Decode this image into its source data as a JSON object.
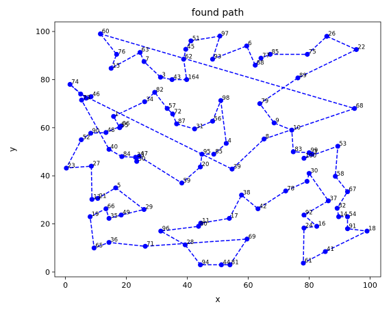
{
  "chart_data": {
    "type": "line",
    "title": "found path",
    "xlabel": "x",
    "ylabel": "y",
    "xlim": [
      -3.5,
      103.5
    ],
    "ylim": [
      -2,
      104
    ],
    "xticks": [
      0,
      20,
      40,
      60,
      80,
      100
    ],
    "yticks": [
      0,
      20,
      40,
      60,
      80,
      100
    ],
    "grid": false,
    "series": [
      {
        "color": "#0000ff",
        "line_style": "dashed",
        "marker": "circle",
        "points": [
          {
            "id": "60",
            "x": 11.5,
            "y": 99
          },
          {
            "id": "76",
            "x": 16.8,
            "y": 90.5
          },
          {
            "id": "15",
            "x": 15.0,
            "y": 84.7
          },
          {
            "id": "63",
            "x": 24.5,
            "y": 91.3
          },
          {
            "id": "7",
            "x": 25.8,
            "y": 87.5
          },
          {
            "id": "3",
            "x": 31.2,
            "y": 81.0
          },
          {
            "id": "43",
            "x": 35.0,
            "y": 80.0
          },
          {
            "id": "164",
            "x": 39.8,
            "y": 80.0
          },
          {
            "id": "62",
            "x": 38.8,
            "y": 88.5
          },
          {
            "id": "45",
            "x": 39.5,
            "y": 92.6
          },
          {
            "id": "51",
            "x": 41.2,
            "y": 96.1
          },
          {
            "id": "97",
            "x": 50.7,
            "y": 98.1
          },
          {
            "id": "93",
            "x": 48.3,
            "y": 88.5
          },
          {
            "id": "6",
            "x": 59.5,
            "y": 94.0
          },
          {
            "id": "88",
            "x": 62.3,
            "y": 86.0
          },
          {
            "id": "77",
            "x": 64.2,
            "y": 88.9
          },
          {
            "id": "85",
            "x": 67.2,
            "y": 90.5
          },
          {
            "id": "75",
            "x": 79.4,
            "y": 90.5
          },
          {
            "id": "26",
            "x": 85.8,
            "y": 98.0
          },
          {
            "id": "22",
            "x": 95.5,
            "y": 92.5
          },
          {
            "id": "89",
            "x": 76.3,
            "y": 80.7
          },
          {
            "id": "79",
            "x": 63.8,
            "y": 70.0
          },
          {
            "id": "9",
            "x": 68.5,
            "y": 62.0
          },
          {
            "id": "10",
            "x": 74.3,
            "y": 59.0
          },
          {
            "id": "83",
            "x": 74.8,
            "y": 50.0
          },
          {
            "id": "99",
            "x": 80.0,
            "y": 49.6
          },
          {
            "id": "3",
            "x": 81.0,
            "y": 49.0
          },
          {
            "id": "100",
            "x": 78.3,
            "y": 47.3
          },
          {
            "id": "53",
            "x": 89.4,
            "y": 52.3
          },
          {
            "id": "58",
            "x": 88.6,
            "y": 39.8
          },
          {
            "id": "67",
            "x": 92.6,
            "y": 33.4
          },
          {
            "id": "32",
            "x": 89.2,
            "y": 26.5
          },
          {
            "id": "14",
            "x": 89.7,
            "y": 23.0
          },
          {
            "id": "54",
            "x": 92.6,
            "y": 23.0
          },
          {
            "id": "91",
            "x": 92.6,
            "y": 18.0
          },
          {
            "id": "18",
            "x": 99.0,
            "y": 17.0
          },
          {
            "id": "41",
            "x": 85.3,
            "y": 8.5
          },
          {
            "id": "61",
            "x": 78.1,
            "y": 3.7
          },
          {
            "id": "24",
            "x": 78.3,
            "y": 18.3
          },
          {
            "id": "16",
            "x": 82.5,
            "y": 19.0
          },
          {
            "id": "92",
            "x": 78.3,
            "y": 23.7
          },
          {
            "id": "37",
            "x": 86.3,
            "y": 29.6
          },
          {
            "id": "30",
            "x": 80.0,
            "y": 41.0
          },
          {
            "id": "30b",
            "x": 79.3,
            "y": 37.7
          },
          {
            "id": "78",
            "x": 72.3,
            "y": 33.7
          },
          {
            "id": "42",
            "x": 63.2,
            "y": 26.3
          },
          {
            "id": "38",
            "x": 57.8,
            "y": 32.0
          },
          {
            "id": "17",
            "x": 53.8,
            "y": 22.3
          },
          {
            "id": "11",
            "x": 44.4,
            "y": 20.3
          },
          {
            "id": "80",
            "x": 43.7,
            "y": 19.0
          },
          {
            "id": "96",
            "x": 31.3,
            "y": 17.0
          },
          {
            "id": "28",
            "x": 39.3,
            "y": 11.3
          },
          {
            "id": "94",
            "x": 44.3,
            "y": 3.0
          },
          {
            "id": "44",
            "x": 51.2,
            "y": 3.0
          },
          {
            "id": "81",
            "x": 54.0,
            "y": 3.0
          },
          {
            "id": "69",
            "x": 59.6,
            "y": 13.7
          },
          {
            "id": "71",
            "x": 26.2,
            "y": 10.7
          },
          {
            "id": "36",
            "x": 14.3,
            "y": 12.3
          },
          {
            "id": "65",
            "x": 9.4,
            "y": 10.0
          },
          {
            "id": "19",
            "x": 8.1,
            "y": 23.0
          },
          {
            "id": "66",
            "x": 13.3,
            "y": 26.3
          },
          {
            "id": "35",
            "x": 14.3,
            "y": 22.3
          },
          {
            "id": "49",
            "x": 18.3,
            "y": 23.7
          },
          {
            "id": "29",
            "x": 25.8,
            "y": 26.0
          },
          {
            "id": "5",
            "x": 16.5,
            "y": 35.0
          },
          {
            "id": "21",
            "x": 10.6,
            "y": 30.6
          },
          {
            "id": "13",
            "x": 8.7,
            "y": 30.2
          },
          {
            "id": "27",
            "x": 8.5,
            "y": 44.0
          },
          {
            "id": "23",
            "x": 0.3,
            "y": 43.2
          },
          {
            "id": "52",
            "x": 5.2,
            "y": 55.0
          },
          {
            "id": "90",
            "x": 8.3,
            "y": 57.7
          },
          {
            "id": "48",
            "x": 13.3,
            "y": 58.0
          },
          {
            "id": "86",
            "x": 18.2,
            "y": 60.7
          },
          {
            "id": "55",
            "x": 17.8,
            "y": 60.0
          },
          {
            "id": "1",
            "x": 15.8,
            "y": 64.7
          },
          {
            "id": "34",
            "x": 26.0,
            "y": 70.8
          },
          {
            "id": "82",
            "x": 29.3,
            "y": 74.7
          },
          {
            "id": "57",
            "x": 33.4,
            "y": 68.0
          },
          {
            "id": "72",
            "x": 35.2,
            "y": 65.7
          },
          {
            "id": "87",
            "x": 36.5,
            "y": 61.6
          },
          {
            "id": "31",
            "x": 42.4,
            "y": 59.5
          },
          {
            "id": "56",
            "x": 48.3,
            "y": 62.7
          },
          {
            "id": "98",
            "x": 51.0,
            "y": 71.3
          },
          {
            "id": "4",
            "x": 52.8,
            "y": 53.5
          },
          {
            "id": "85b",
            "x": 48.7,
            "y": 49.0
          },
          {
            "id": "95",
            "x": 44.8,
            "y": 49.0
          },
          {
            "id": "20",
            "x": 44.3,
            "y": 43.7
          },
          {
            "id": "59",
            "x": 38.2,
            "y": 37.0
          },
          {
            "id": "47",
            "x": 24.2,
            "y": 48.1
          },
          {
            "id": "30c",
            "x": 23.4,
            "y": 46.0
          },
          {
            "id": "33",
            "x": 23.0,
            "y": 47.7
          },
          {
            "id": "84",
            "x": 18.5,
            "y": 48.0
          },
          {
            "id": "40",
            "x": 14.3,
            "y": 51.0
          },
          {
            "id": "73",
            "x": 5.3,
            "y": 71.5
          },
          {
            "id": "46",
            "x": 8.4,
            "y": 72.9
          },
          {
            "id": "70",
            "x": 6.8,
            "y": 72.3
          },
          {
            "id": "74",
            "x": 1.5,
            "y": 78.0
          },
          {
            "id": "46b",
            "x": 5.0,
            "y": 74.0
          },
          {
            "id": "39",
            "x": 54.7,
            "y": 42.8
          },
          {
            "id": "8",
            "x": 65.2,
            "y": 55.3
          },
          {
            "id": "68",
            "x": 94.9,
            "y": 68.0
          },
          {
            "id": "60",
            "x": 11.5,
            "y": 99
          }
        ]
      }
    ],
    "point_labels": [
      {
        "text": "60",
        "x": 11.5,
        "y": 99
      },
      {
        "text": "76",
        "x": 16.8,
        "y": 90.5
      },
      {
        "text": "15",
        "x": 15.0,
        "y": 84.7
      },
      {
        "text": "63",
        "x": 24.5,
        "y": 91.3
      },
      {
        "text": "7",
        "x": 25.8,
        "y": 87.5
      },
      {
        "text": "3",
        "x": 31.2,
        "y": 81.0
      },
      {
        "text": "43",
        "x": 35.0,
        "y": 80.0
      },
      {
        "text": "164",
        "x": 39.8,
        "y": 80.0
      },
      {
        "text": "62",
        "x": 38.8,
        "y": 88.5
      },
      {
        "text": "45",
        "x": 39.5,
        "y": 92.6
      },
      {
        "text": "51",
        "x": 41.2,
        "y": 96.1
      },
      {
        "text": "97",
        "x": 50.7,
        "y": 98.1
      },
      {
        "text": "93",
        "x": 48.3,
        "y": 88.5
      },
      {
        "text": "6",
        "x": 59.5,
        "y": 94.0
      },
      {
        "text": "88",
        "x": 62.3,
        "y": 86.0
      },
      {
        "text": "77",
        "x": 64.2,
        "y": 88.9
      },
      {
        "text": "85",
        "x": 67.2,
        "y": 90.5
      },
      {
        "text": "75",
        "x": 79.4,
        "y": 90.5
      },
      {
        "text": "26",
        "x": 85.8,
        "y": 98.0
      },
      {
        "text": "22",
        "x": 95.5,
        "y": 92.5
      },
      {
        "text": "89",
        "x": 76.3,
        "y": 80.7
      },
      {
        "text": "79",
        "x": 63.8,
        "y": 70.0
      },
      {
        "text": "9",
        "x": 68.5,
        "y": 62.0
      },
      {
        "text": "10",
        "x": 74.3,
        "y": 59.0
      },
      {
        "text": "83",
        "x": 74.8,
        "y": 50.0
      },
      {
        "text": "99",
        "x": 80.0,
        "y": 49.6
      },
      {
        "text": "3",
        "x": 81.0,
        "y": 49.0
      },
      {
        "text": "100",
        "x": 78.3,
        "y": 47.3
      },
      {
        "text": "53",
        "x": 89.4,
        "y": 52.3
      },
      {
        "text": "58",
        "x": 88.6,
        "y": 39.8
      },
      {
        "text": "67",
        "x": 92.6,
        "y": 33.4
      },
      {
        "text": "32",
        "x": 89.2,
        "y": 26.5
      },
      {
        "text": "14",
        "x": 89.7,
        "y": 23.0
      },
      {
        "text": "54",
        "x": 92.6,
        "y": 23.0
      },
      {
        "text": "91",
        "x": 92.6,
        "y": 18.0
      },
      {
        "text": "18",
        "x": 99.0,
        "y": 17.0
      },
      {
        "text": "41",
        "x": 85.3,
        "y": 8.5
      },
      {
        "text": "61",
        "x": 78.1,
        "y": 3.7
      },
      {
        "text": "24",
        "x": 78.3,
        "y": 18.3
      },
      {
        "text": "16",
        "x": 82.5,
        "y": 19.0
      },
      {
        "text": "92",
        "x": 78.3,
        "y": 23.7
      },
      {
        "text": "37",
        "x": 86.3,
        "y": 29.6
      },
      {
        "text": "30",
        "x": 80.0,
        "y": 41.0
      },
      {
        "text": "78",
        "x": 72.3,
        "y": 33.7
      },
      {
        "text": "42",
        "x": 63.2,
        "y": 26.3
      },
      {
        "text": "38",
        "x": 57.8,
        "y": 32.0
      },
      {
        "text": "17",
        "x": 53.8,
        "y": 22.3
      },
      {
        "text": "11",
        "x": 44.4,
        "y": 20.3
      },
      {
        "text": "80",
        "x": 43.7,
        "y": 19.0
      },
      {
        "text": "96",
        "x": 31.3,
        "y": 17.0
      },
      {
        "text": "28",
        "x": 39.3,
        "y": 11.3
      },
      {
        "text": "94",
        "x": 44.3,
        "y": 3.0
      },
      {
        "text": "44",
        "x": 51.2,
        "y": 3.0
      },
      {
        "text": "81",
        "x": 54.0,
        "y": 3.0
      },
      {
        "text": "69",
        "x": 59.6,
        "y": 13.7
      },
      {
        "text": "71",
        "x": 26.2,
        "y": 10.7
      },
      {
        "text": "36",
        "x": 14.3,
        "y": 12.3
      },
      {
        "text": "65",
        "x": 9.4,
        "y": 10.0
      },
      {
        "text": "19",
        "x": 8.1,
        "y": 23.0
      },
      {
        "text": "66",
        "x": 13.3,
        "y": 26.3
      },
      {
        "text": "35",
        "x": 14.3,
        "y": 22.3
      },
      {
        "text": "49",
        "x": 18.3,
        "y": 23.7
      },
      {
        "text": "29",
        "x": 25.8,
        "y": 26.0
      },
      {
        "text": "5",
        "x": 16.5,
        "y": 35.0
      },
      {
        "text": "21",
        "x": 10.6,
        "y": 30.6
      },
      {
        "text": "13",
        "x": 8.7,
        "y": 30.2
      },
      {
        "text": "27",
        "x": 8.5,
        "y": 44.0
      },
      {
        "text": "23",
        "x": 0.3,
        "y": 43.2
      },
      {
        "text": "52",
        "x": 5.2,
        "y": 55.0
      },
      {
        "text": "90",
        "x": 8.3,
        "y": 57.7
      },
      {
        "text": "48",
        "x": 13.3,
        "y": 58.0
      },
      {
        "text": "86",
        "x": 18.2,
        "y": 60.7
      },
      {
        "text": "55",
        "x": 17.8,
        "y": 60.0
      },
      {
        "text": "1",
        "x": 15.8,
        "y": 64.7
      },
      {
        "text": "34",
        "x": 26.0,
        "y": 70.8
      },
      {
        "text": "82",
        "x": 29.3,
        "y": 74.7
      },
      {
        "text": "57",
        "x": 33.4,
        "y": 68.0
      },
      {
        "text": "72",
        "x": 35.2,
        "y": 65.7
      },
      {
        "text": "87",
        "x": 36.5,
        "y": 61.6
      },
      {
        "text": "31",
        "x": 42.4,
        "y": 59.5
      },
      {
        "text": "56",
        "x": 48.3,
        "y": 62.7
      },
      {
        "text": "98",
        "x": 51.0,
        "y": 71.3
      },
      {
        "text": "4",
        "x": 52.8,
        "y": 53.5
      },
      {
        "text": "85",
        "x": 48.7,
        "y": 49.0
      },
      {
        "text": "95",
        "x": 44.8,
        "y": 49.0
      },
      {
        "text": "20",
        "x": 44.3,
        "y": 43.7
      },
      {
        "text": "59",
        "x": 38.2,
        "y": 37.0
      },
      {
        "text": "47",
        "x": 24.2,
        "y": 48.1
      },
      {
        "text": "30",
        "x": 23.4,
        "y": 46.0
      },
      {
        "text": "33",
        "x": 23.0,
        "y": 47.7
      },
      {
        "text": "84",
        "x": 18.5,
        "y": 48.0
      },
      {
        "text": "40",
        "x": 14.3,
        "y": 51.0
      },
      {
        "text": "73",
        "x": 5.3,
        "y": 71.5
      },
      {
        "text": "46",
        "x": 8.4,
        "y": 72.9
      },
      {
        "text": "74",
        "x": 1.5,
        "y": 78.0
      },
      {
        "text": "39",
        "x": 54.7,
        "y": 42.8
      },
      {
        "text": "8",
        "x": 65.2,
        "y": 55.3
      },
      {
        "text": "68",
        "x": 94.9,
        "y": 68.0
      }
    ]
  }
}
